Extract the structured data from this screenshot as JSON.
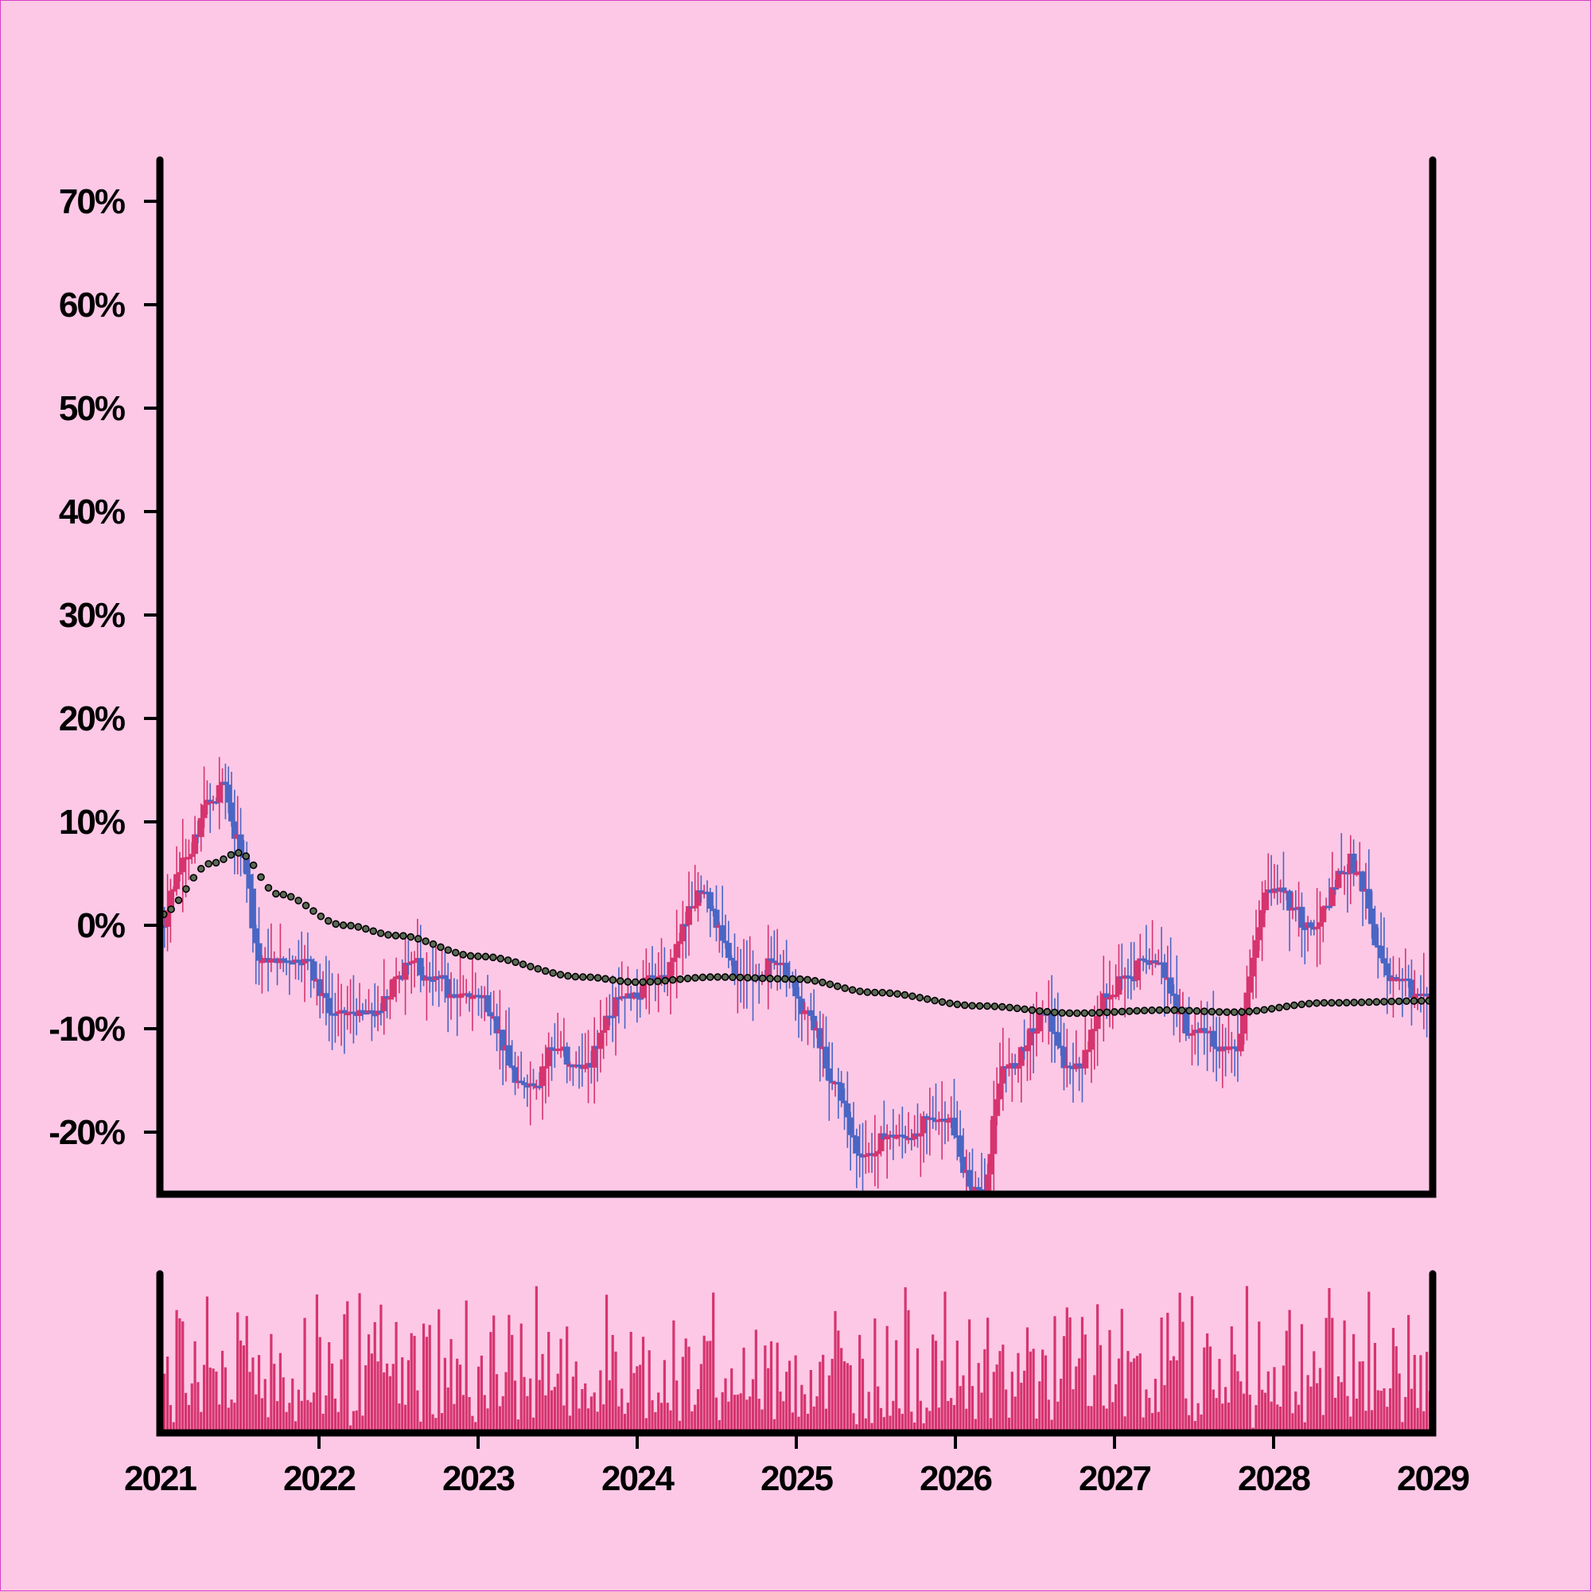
{
  "colors": {
    "background": "#fcc8e6",
    "up": "#d6346e",
    "down": "#4a66c4",
    "volume": "#d6346e",
    "trend_dot_fill": "#5c6b55",
    "axis": "#000000"
  },
  "chart_data": {
    "type": "candlestick",
    "title": "",
    "xlabel": "",
    "ylabel": "",
    "x_range": [
      "2021-01-01",
      "2029-01-01"
    ],
    "ylim": [
      -26,
      75
    ],
    "y_unit": "%",
    "y_ticks": [
      {
        "value": -20,
        "label": "-20%"
      },
      {
        "value": -10,
        "label": "-10%"
      },
      {
        "value": 0,
        "label": "0%"
      },
      {
        "value": 10,
        "label": "10%"
      },
      {
        "value": 20,
        "label": "20%"
      },
      {
        "value": 30,
        "label": "30%"
      },
      {
        "value": 40,
        "label": "40%"
      },
      {
        "value": 50,
        "label": "50%"
      },
      {
        "value": 60,
        "label": "60%"
      },
      {
        "value": 70,
        "label": "70%"
      }
    ],
    "x_ticks": [
      "2021",
      "2022",
      "2023",
      "2024",
      "2025",
      "2026",
      "2027",
      "2028",
      "2029"
    ],
    "grid": false,
    "legend": "none",
    "series": [
      {
        "kind": "ohlc",
        "period": "weekly",
        "up_color": "#d6346e",
        "down_color": "#4a66c4",
        "close_path": [
          {
            "date": "2021-01-01",
            "value": 0
          },
          {
            "date": "2021-03-01",
            "value": 6
          },
          {
            "date": "2021-05-01",
            "value": 12
          },
          {
            "date": "2021-06-01",
            "value": 14
          },
          {
            "date": "2021-07-01",
            "value": 8
          },
          {
            "date": "2021-09-01",
            "value": -4
          },
          {
            "date": "2021-12-01",
            "value": -3
          },
          {
            "date": "2022-02-01",
            "value": -8
          },
          {
            "date": "2022-05-01",
            "value": -9
          },
          {
            "date": "2022-08-01",
            "value": -4
          },
          {
            "date": "2022-11-01",
            "value": -6
          },
          {
            "date": "2023-01-01",
            "value": -7
          },
          {
            "date": "2023-05-01",
            "value": -16
          },
          {
            "date": "2023-07-01",
            "value": -12
          },
          {
            "date": "2023-09-01",
            "value": -14
          },
          {
            "date": "2023-12-01",
            "value": -7
          },
          {
            "date": "2024-03-01",
            "value": -5
          },
          {
            "date": "2024-06-01",
            "value": 3
          },
          {
            "date": "2024-09-01",
            "value": -5
          },
          {
            "date": "2024-12-01",
            "value": -4
          },
          {
            "date": "2025-02-01",
            "value": -9
          },
          {
            "date": "2025-04-01",
            "value": -15
          },
          {
            "date": "2025-06-01",
            "value": -22
          },
          {
            "date": "2025-08-01",
            "value": -21
          },
          {
            "date": "2025-10-01",
            "value": -20
          },
          {
            "date": "2025-12-01",
            "value": -18
          },
          {
            "date": "2026-03-01",
            "value": -26
          },
          {
            "date": "2026-05-01",
            "value": -14
          },
          {
            "date": "2026-08-01",
            "value": -9
          },
          {
            "date": "2026-10-01",
            "value": -14
          },
          {
            "date": "2027-01-01",
            "value": -6
          },
          {
            "date": "2027-04-01",
            "value": -3
          },
          {
            "date": "2027-07-01",
            "value": -10
          },
          {
            "date": "2027-10-01",
            "value": -12
          },
          {
            "date": "2028-01-01",
            "value": 4
          },
          {
            "date": "2028-04-01",
            "value": 0
          },
          {
            "date": "2028-07-01",
            "value": 6
          },
          {
            "date": "2028-10-01",
            "value": -5
          },
          {
            "date": "2029-01-01",
            "value": -7
          }
        ]
      },
      {
        "kind": "trend_dots",
        "values": [
          {
            "date": "2021-01-01",
            "value": 1
          },
          {
            "date": "2021-05-01",
            "value": 6
          },
          {
            "date": "2021-07-01",
            "value": 7
          },
          {
            "date": "2021-10-01",
            "value": 3
          },
          {
            "date": "2022-03-01",
            "value": 0
          },
          {
            "date": "2022-07-01",
            "value": -1
          },
          {
            "date": "2023-01-01",
            "value": -3
          },
          {
            "date": "2023-09-01",
            "value": -5
          },
          {
            "date": "2024-01-01",
            "value": -5.5
          },
          {
            "date": "2024-07-01",
            "value": -5
          },
          {
            "date": "2025-01-01",
            "value": -5.2
          },
          {
            "date": "2025-07-01",
            "value": -6.5
          },
          {
            "date": "2026-03-01",
            "value": -7.8
          },
          {
            "date": "2026-10-01",
            "value": -8.5
          },
          {
            "date": "2027-05-01",
            "value": -8.2
          },
          {
            "date": "2027-10-01",
            "value": -8.4
          },
          {
            "date": "2028-05-01",
            "value": -7.5
          },
          {
            "date": "2029-01-01",
            "value": -7.3
          }
        ]
      }
    ],
    "volume": {
      "color": "#d6346e",
      "min": 0,
      "max": 100
    }
  }
}
